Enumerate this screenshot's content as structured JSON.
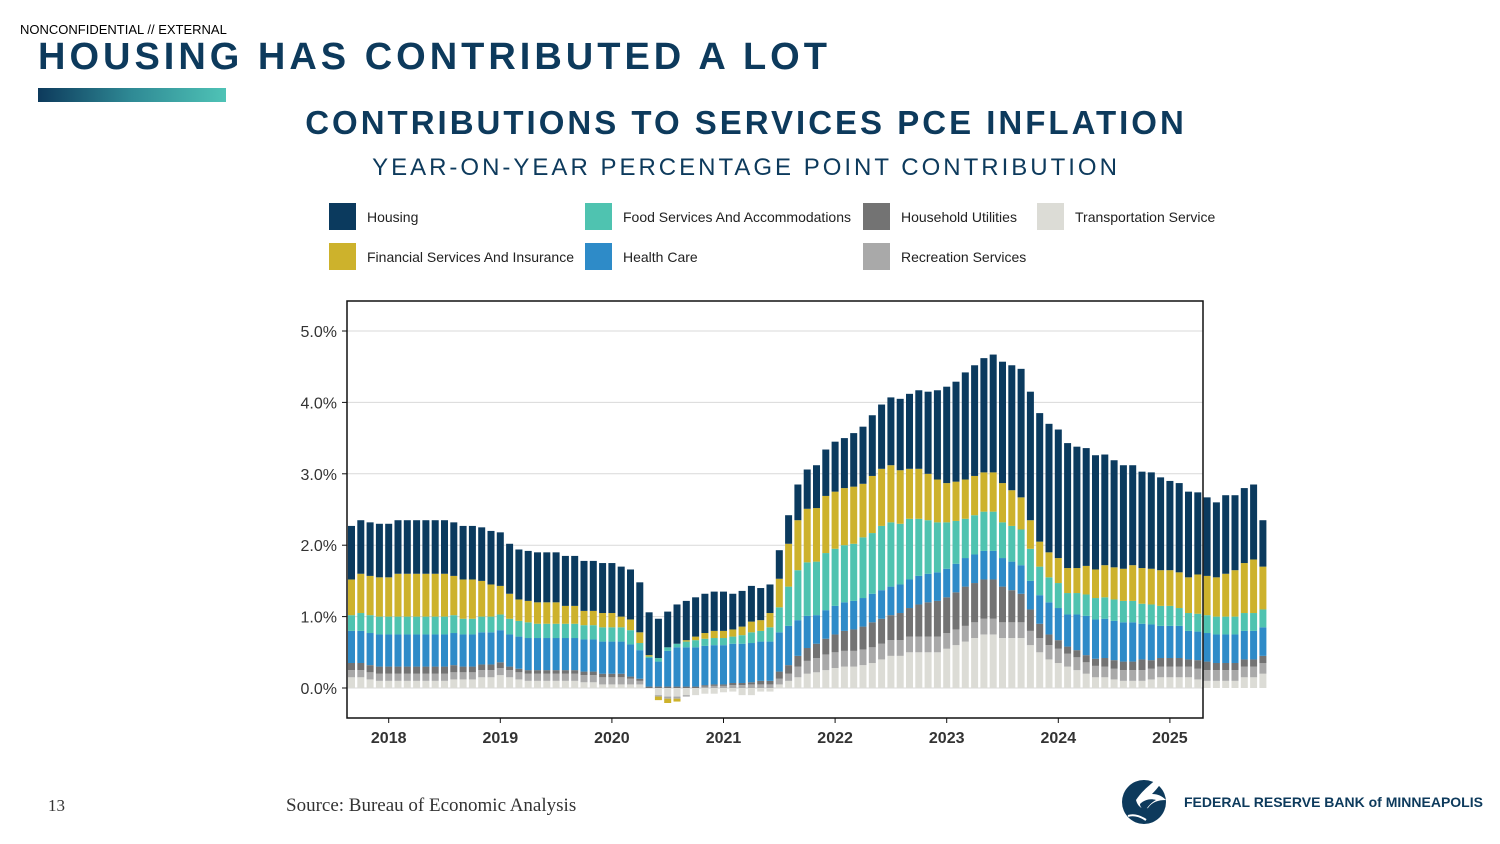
{
  "header": {
    "classification": "NONCONFIDENTIAL // EXTERNAL",
    "title": "HOUSING HAS CONTRIBUTED A LOT"
  },
  "footer": {
    "page_number": "13",
    "source": "Source: Bureau of Economic Analysis",
    "org_name": "FEDERAL RESERVE BANK of MINNEAPOLIS"
  },
  "chart_data": {
    "type": "bar",
    "stacked": true,
    "title": "CONTRIBUTIONS TO SERVICES PCE INFLATION",
    "subtitle": "YEAR-ON-YEAR PERCENTAGE POINT CONTRIBUTION",
    "legend_position": "top",
    "ylim": [
      -0.45,
      5.4
    ],
    "y_ticks": [
      {
        "value": 0,
        "label": "0.0%"
      },
      {
        "value": 1,
        "label": "1.0%"
      },
      {
        "value": 2,
        "label": "2.0%"
      },
      {
        "value": 3,
        "label": "3.0%"
      },
      {
        "value": 4,
        "label": "4.0%"
      },
      {
        "value": 5,
        "label": "5.0%"
      }
    ],
    "x_ticks": [
      "2018",
      "2019",
      "2020",
      "2021",
      "2022",
      "2023",
      "2024",
      "2025"
    ],
    "grid": true,
    "x_start": "2017-09",
    "frequency": "monthly",
    "series": [
      {
        "name": "Transportation Service",
        "color": "#dcdcd6",
        "values": [
          0.15,
          0.15,
          0.12,
          0.1,
          0.1,
          0.1,
          0.1,
          0.1,
          0.1,
          0.1,
          0.1,
          0.12,
          0.12,
          0.12,
          0.15,
          0.15,
          0.18,
          0.15,
          0.12,
          0.1,
          0.1,
          0.1,
          0.1,
          0.1,
          0.1,
          0.08,
          0.08,
          0.05,
          0.05,
          0.05,
          0.05,
          0.05,
          0.0,
          -0.1,
          -0.12,
          -0.12,
          -0.1,
          -0.1,
          -0.08,
          -0.08,
          -0.06,
          -0.05,
          -0.1,
          -0.1,
          -0.05,
          -0.05,
          0.05,
          0.1,
          0.15,
          0.2,
          0.22,
          0.25,
          0.28,
          0.3,
          0.3,
          0.32,
          0.35,
          0.4,
          0.45,
          0.45,
          0.5,
          0.5,
          0.5,
          0.5,
          0.55,
          0.6,
          0.65,
          0.7,
          0.75,
          0.75,
          0.7,
          0.7,
          0.7,
          0.6,
          0.5,
          0.4,
          0.35,
          0.3,
          0.25,
          0.2,
          0.15,
          0.15,
          0.12,
          0.1,
          0.1,
          0.1,
          0.12,
          0.15,
          0.15,
          0.15,
          0.15,
          0.12,
          0.1,
          0.1,
          0.1,
          0.1,
          0.15,
          0.15,
          0.2
        ]
      },
      {
        "name": "Recreation Services",
        "color": "#a9a9a9",
        "values": [
          0.1,
          0.1,
          0.1,
          0.1,
          0.1,
          0.1,
          0.1,
          0.1,
          0.1,
          0.1,
          0.1,
          0.1,
          0.1,
          0.1,
          0.1,
          0.1,
          0.1,
          0.1,
          0.1,
          0.1,
          0.1,
          0.1,
          0.1,
          0.1,
          0.1,
          0.1,
          0.1,
          0.1,
          0.1,
          0.1,
          0.08,
          0.05,
          0.0,
          -0.02,
          -0.03,
          -0.03,
          -0.02,
          0.0,
          0.02,
          0.03,
          0.03,
          0.04,
          0.04,
          0.05,
          0.05,
          0.05,
          0.08,
          0.1,
          0.15,
          0.18,
          0.2,
          0.22,
          0.22,
          0.22,
          0.22,
          0.22,
          0.22,
          0.22,
          0.22,
          0.22,
          0.22,
          0.22,
          0.22,
          0.22,
          0.22,
          0.22,
          0.22,
          0.22,
          0.22,
          0.22,
          0.22,
          0.22,
          0.22,
          0.2,
          0.2,
          0.2,
          0.2,
          0.18,
          0.18,
          0.16,
          0.16,
          0.15,
          0.15,
          0.15,
          0.15,
          0.15,
          0.15,
          0.15,
          0.15,
          0.15,
          0.15,
          0.15,
          0.15,
          0.15,
          0.15,
          0.15,
          0.15,
          0.15,
          0.15
        ]
      },
      {
        "name": "Household Utilities",
        "color": "#737373",
        "values": [
          0.1,
          0.1,
          0.1,
          0.1,
          0.1,
          0.1,
          0.1,
          0.1,
          0.1,
          0.1,
          0.1,
          0.1,
          0.08,
          0.08,
          0.08,
          0.08,
          0.08,
          0.05,
          0.05,
          0.05,
          0.05,
          0.05,
          0.05,
          0.05,
          0.05,
          0.05,
          0.05,
          0.05,
          0.05,
          0.05,
          0.03,
          0.03,
          0.02,
          0.02,
          0.02,
          0.02,
          0.02,
          0.02,
          0.02,
          0.02,
          0.02,
          0.03,
          0.03,
          0.03,
          0.05,
          0.05,
          0.1,
          0.12,
          0.15,
          0.18,
          0.2,
          0.22,
          0.25,
          0.28,
          0.3,
          0.32,
          0.35,
          0.35,
          0.35,
          0.38,
          0.4,
          0.45,
          0.48,
          0.5,
          0.5,
          0.52,
          0.55,
          0.55,
          0.55,
          0.55,
          0.5,
          0.45,
          0.4,
          0.3,
          0.2,
          0.15,
          0.12,
          0.1,
          0.1,
          0.1,
          0.1,
          0.12,
          0.12,
          0.12,
          0.12,
          0.15,
          0.12,
          0.12,
          0.12,
          0.12,
          0.1,
          0.12,
          0.12,
          0.1,
          0.1,
          0.1,
          0.1,
          0.1,
          0.1
        ]
      },
      {
        "name": "Health Care",
        "color": "#2e8bc8",
        "values": [
          0.45,
          0.45,
          0.45,
          0.45,
          0.45,
          0.45,
          0.45,
          0.45,
          0.45,
          0.45,
          0.45,
          0.45,
          0.45,
          0.45,
          0.45,
          0.45,
          0.45,
          0.45,
          0.45,
          0.45,
          0.45,
          0.45,
          0.45,
          0.45,
          0.45,
          0.45,
          0.45,
          0.45,
          0.45,
          0.45,
          0.45,
          0.4,
          0.4,
          0.35,
          0.5,
          0.55,
          0.55,
          0.55,
          0.55,
          0.55,
          0.55,
          0.55,
          0.55,
          0.55,
          0.55,
          0.55,
          0.55,
          0.55,
          0.5,
          0.45,
          0.4,
          0.4,
          0.4,
          0.4,
          0.4,
          0.4,
          0.4,
          0.4,
          0.4,
          0.4,
          0.4,
          0.4,
          0.4,
          0.4,
          0.4,
          0.4,
          0.4,
          0.4,
          0.4,
          0.4,
          0.4,
          0.4,
          0.4,
          0.4,
          0.4,
          0.45,
          0.45,
          0.45,
          0.5,
          0.55,
          0.55,
          0.55,
          0.55,
          0.55,
          0.55,
          0.5,
          0.5,
          0.45,
          0.45,
          0.45,
          0.4,
          0.4,
          0.4,
          0.4,
          0.4,
          0.4,
          0.4,
          0.4,
          0.4
        ]
      },
      {
        "name": "Food Services And Accommodations",
        "color": "#4fc3b0",
        "values": [
          0.22,
          0.25,
          0.25,
          0.25,
          0.25,
          0.25,
          0.25,
          0.25,
          0.25,
          0.25,
          0.25,
          0.25,
          0.22,
          0.22,
          0.22,
          0.22,
          0.22,
          0.22,
          0.22,
          0.22,
          0.2,
          0.2,
          0.2,
          0.2,
          0.2,
          0.2,
          0.2,
          0.2,
          0.2,
          0.2,
          0.2,
          0.1,
          0.02,
          0.05,
          0.05,
          0.05,
          0.08,
          0.1,
          0.1,
          0.1,
          0.1,
          0.1,
          0.12,
          0.15,
          0.15,
          0.2,
          0.35,
          0.55,
          0.7,
          0.75,
          0.75,
          0.8,
          0.8,
          0.8,
          0.8,
          0.85,
          0.85,
          0.9,
          0.9,
          0.85,
          0.85,
          0.8,
          0.75,
          0.7,
          0.65,
          0.6,
          0.55,
          0.55,
          0.55,
          0.55,
          0.5,
          0.5,
          0.5,
          0.45,
          0.4,
          0.35,
          0.35,
          0.3,
          0.3,
          0.3,
          0.3,
          0.3,
          0.3,
          0.3,
          0.3,
          0.28,
          0.28,
          0.28,
          0.28,
          0.25,
          0.25,
          0.25,
          0.25,
          0.25,
          0.25,
          0.25,
          0.25,
          0.25,
          0.25
        ]
      },
      {
        "name": "Financial Services And Insurance",
        "color": "#cdb22c",
        "values": [
          0.5,
          0.55,
          0.55,
          0.55,
          0.55,
          0.6,
          0.6,
          0.6,
          0.6,
          0.6,
          0.6,
          0.55,
          0.55,
          0.55,
          0.5,
          0.45,
          0.4,
          0.35,
          0.3,
          0.3,
          0.3,
          0.3,
          0.3,
          0.25,
          0.25,
          0.2,
          0.2,
          0.2,
          0.2,
          0.15,
          0.15,
          0.15,
          0.02,
          -0.05,
          -0.06,
          -0.04,
          0.02,
          0.05,
          0.08,
          0.1,
          0.1,
          0.1,
          0.12,
          0.15,
          0.15,
          0.2,
          0.4,
          0.6,
          0.7,
          0.75,
          0.75,
          0.8,
          0.8,
          0.8,
          0.8,
          0.75,
          0.8,
          0.8,
          0.8,
          0.75,
          0.7,
          0.7,
          0.65,
          0.6,
          0.55,
          0.55,
          0.55,
          0.55,
          0.55,
          0.55,
          0.55,
          0.5,
          0.45,
          0.4,
          0.35,
          0.35,
          0.35,
          0.35,
          0.35,
          0.4,
          0.4,
          0.45,
          0.45,
          0.45,
          0.5,
          0.5,
          0.5,
          0.5,
          0.5,
          0.5,
          0.5,
          0.55,
          0.55,
          0.55,
          0.6,
          0.65,
          0.7,
          0.75,
          0.6
        ]
      },
      {
        "name": "Housing",
        "color": "#0b3a5e",
        "values": [
          0.75,
          0.75,
          0.75,
          0.75,
          0.75,
          0.75,
          0.75,
          0.75,
          0.75,
          0.75,
          0.75,
          0.75,
          0.75,
          0.75,
          0.75,
          0.75,
          0.75,
          0.7,
          0.7,
          0.7,
          0.7,
          0.7,
          0.7,
          0.7,
          0.7,
          0.7,
          0.7,
          0.7,
          0.7,
          0.7,
          0.7,
          0.7,
          0.6,
          0.55,
          0.5,
          0.55,
          0.55,
          0.55,
          0.55,
          0.55,
          0.55,
          0.5,
          0.5,
          0.5,
          0.45,
          0.4,
          0.4,
          0.4,
          0.5,
          0.55,
          0.6,
          0.65,
          0.7,
          0.7,
          0.75,
          0.8,
          0.85,
          0.9,
          0.95,
          1.0,
          1.05,
          1.1,
          1.15,
          1.25,
          1.35,
          1.4,
          1.5,
          1.55,
          1.6,
          1.65,
          1.7,
          1.75,
          1.8,
          1.8,
          1.8,
          1.8,
          1.8,
          1.75,
          1.7,
          1.65,
          1.6,
          1.55,
          1.5,
          1.45,
          1.4,
          1.35,
          1.35,
          1.3,
          1.25,
          1.25,
          1.2,
          1.15,
          1.1,
          1.05,
          1.1,
          1.05,
          1.05,
          1.05,
          0.65
        ]
      }
    ]
  }
}
